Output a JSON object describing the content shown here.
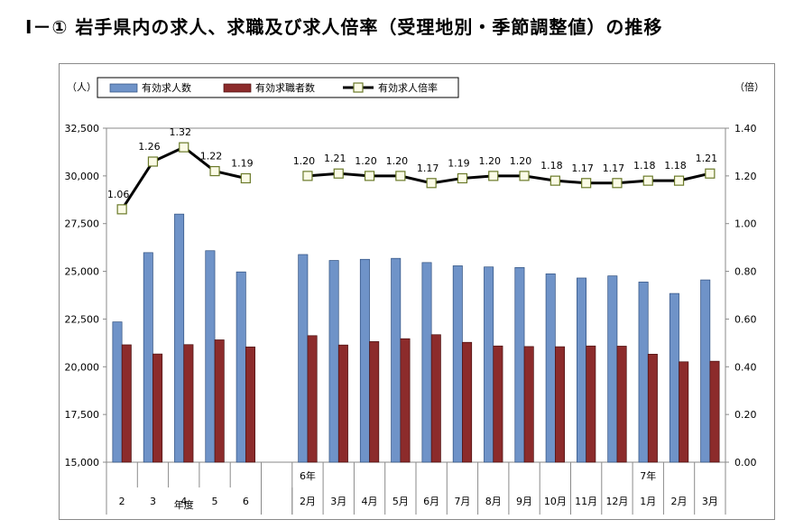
{
  "title": "Ⅰ－① 岩手県内の求人、求職及び求人倍率（受理地別・季節調整値）の推移",
  "chart_data": {
    "type": "bar+line",
    "left_axis_unit": "（人）",
    "right_axis_unit": "（倍）",
    "left_axis": {
      "min": 15000,
      "max": 32500,
      "step": 2500,
      "tick_labels": [
        "15,000",
        "17,500",
        "20,000",
        "22,500",
        "25,000",
        "27,500",
        "30,000",
        "32,500"
      ]
    },
    "right_axis": {
      "min": 0,
      "max": 1.4,
      "step": 0.2,
      "tick_labels": [
        "0.00",
        "0.20",
        "0.40",
        "0.60",
        "0.80",
        "1.00",
        "1.20",
        "1.40"
      ]
    },
    "groups": [
      {
        "label": "年度",
        "categories": [
          "2",
          "3",
          "4",
          "5",
          "6"
        ]
      },
      {
        "label": "",
        "categories": [
          "2月",
          "3月",
          "4月",
          "5月",
          "6月",
          "7月",
          "8月",
          "9月",
          "10月",
          "11月",
          "12月",
          "1月",
          "2月",
          "3月"
        ]
      }
    ],
    "year_markers": [
      {
        "label": "6年",
        "category_index": 5
      },
      {
        "label": "7年",
        "category_index": 16
      }
    ],
    "legend": {
      "placement": "top-left"
    },
    "series": [
      {
        "name": "有効求人数",
        "type": "bar",
        "color": "#6f93c8",
        "values": [
          22350,
          25980,
          28000,
          26080,
          24970,
          25880,
          25570,
          25630,
          25680,
          25460,
          25290,
          25230,
          25200,
          24870,
          24650,
          24760,
          24440,
          23840,
          24550
        ]
      },
      {
        "name": "有効求職者数",
        "type": "bar",
        "color": "#8c2b2b",
        "values": [
          21150,
          20670,
          21160,
          21410,
          21040,
          21630,
          21140,
          21320,
          21470,
          21680,
          21280,
          21090,
          21060,
          21050,
          21090,
          21080,
          20660,
          20260,
          20290
        ]
      },
      {
        "name": "有効求人倍率",
        "type": "line",
        "axis": "right",
        "color": "#000000",
        "values": [
          1.06,
          1.26,
          1.32,
          1.22,
          1.19,
          1.2,
          1.21,
          1.2,
          1.2,
          1.17,
          1.19,
          1.2,
          1.2,
          1.18,
          1.17,
          1.17,
          1.18,
          1.18,
          1.21
        ],
        "labels": [
          "1.06",
          "1.26",
          "1.32",
          "1.22",
          "1.19",
          "1.20",
          "1.21",
          "1.20",
          "1.20",
          "1.17",
          "1.19",
          "1.20",
          "1.20",
          "1.18",
          "1.17",
          "1.17",
          "1.18",
          "1.18",
          "1.21"
        ]
      }
    ]
  }
}
